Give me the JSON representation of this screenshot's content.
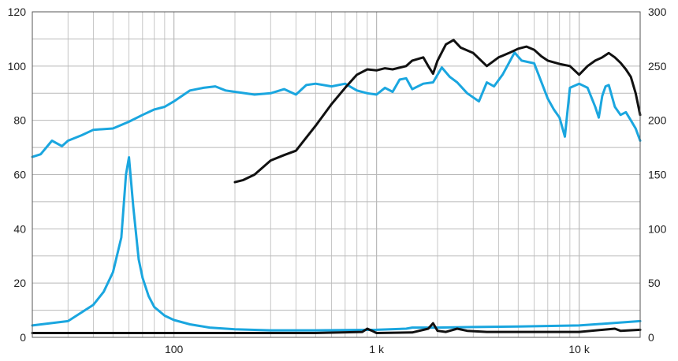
{
  "chart_data": {
    "type": "line",
    "title": "",
    "xlabel": "",
    "ylabel": "",
    "x_scale": "log",
    "xlim": [
      20,
      20000
    ],
    "ylim_left": [
      0,
      120
    ],
    "ylim_right": [
      0,
      300
    ],
    "grid": true,
    "legend": "none",
    "x_tick_labels": [
      {
        "value": 100,
        "label": "100"
      },
      {
        "value": 1000,
        "label": "1 k"
      },
      {
        "value": 10000,
        "label": "10 k"
      }
    ],
    "y_ticks_left": [
      0,
      20,
      40,
      60,
      80,
      100,
      120
    ],
    "y_ticks_right": [
      0,
      50,
      100,
      150,
      200,
      250,
      300
    ],
    "colors": {
      "blue": "#1aa6df",
      "black": "#111111",
      "grid": "#b9b9b9",
      "axis": "#555555"
    },
    "series": [
      {
        "color": "#1aa6df",
        "axis": "left",
        "x": [
          20,
          22,
          25,
          28,
          30,
          35,
          40,
          50,
          60,
          70,
          80,
          90,
          100,
          120,
          140,
          160,
          180,
          200,
          250,
          300,
          350,
          400,
          450,
          500,
          600,
          700,
          800,
          900,
          1000,
          1100,
          1200,
          1300,
          1400,
          1500,
          1700,
          1900,
          2100,
          2300,
          2500,
          2800,
          3200,
          3500,
          3800,
          4200,
          4800,
          5200,
          6000,
          7000,
          7500,
          8000,
          8500,
          9000,
          10000,
          11000,
          12000,
          12500,
          13000,
          13500,
          14000,
          15000,
          16000,
          17000,
          18000,
          19000,
          20000
        ],
        "values": [
          66.5,
          67.5,
          72.5,
          70.5,
          72.5,
          74.5,
          76.5,
          77,
          79.5,
          82,
          84,
          85,
          87,
          91,
          92,
          92.5,
          91,
          90.5,
          89.5,
          90,
          91.5,
          89.5,
          93,
          93.5,
          92.5,
          93.5,
          91,
          90,
          89.5,
          92,
          90.5,
          95,
          95.5,
          91.5,
          93.5,
          94,
          99.5,
          96,
          94,
          90,
          87,
          94,
          92.5,
          97,
          105,
          102,
          101,
          88,
          84,
          81,
          74,
          92,
          93.5,
          92,
          85,
          81,
          89,
          92.5,
          93,
          85,
          82,
          83,
          80,
          77,
          72.5
        ]
      },
      {
        "color": "#111111",
        "axis": "right",
        "x": [
          200,
          220,
          250,
          300,
          350,
          400,
          500,
          600,
          700,
          800,
          900,
          1000,
          1100,
          1200,
          1400,
          1500,
          1700,
          1800,
          1900,
          2000,
          2200,
          2400,
          2600,
          3000,
          3500,
          4000,
          4500,
          5000,
          5500,
          6000,
          6500,
          7000,
          8000,
          9000,
          10000,
          11000,
          12000,
          13000,
          14000,
          15000,
          16000,
          17000,
          18000,
          19000,
          20000
        ],
        "values": [
          143,
          145,
          150,
          163,
          168,
          172,
          195,
          215,
          230,
          242,
          247,
          246,
          248,
          247,
          250,
          255,
          258,
          250,
          243,
          255,
          270,
          274,
          267,
          262,
          250,
          258,
          262,
          266,
          268,
          265,
          259,
          255,
          252,
          250,
          242,
          250,
          255,
          258,
          262,
          258,
          253,
          247,
          240,
          225,
          205
        ]
      },
      {
        "color": "#1aa6df",
        "axis": "right",
        "x": [
          20,
          30,
          40,
          45,
          50,
          55,
          58,
          60,
          63,
          67,
          70,
          75,
          80,
          90,
          100,
          120,
          150,
          200,
          300,
          500,
          1000,
          1400,
          1500,
          2000,
          3000,
          5000,
          10000,
          20000
        ],
        "values": [
          11,
          15,
          30,
          42,
          60,
          92,
          150,
          166,
          120,
          72,
          55,
          38,
          28,
          20,
          16,
          12,
          9,
          7.5,
          6.5,
          6.5,
          7,
          8,
          9,
          9,
          9.5,
          10,
          11,
          15
        ]
      },
      {
        "color": "#111111",
        "axis": "right",
        "x": [
          20,
          100,
          500,
          850,
          900,
          950,
          1000,
          1500,
          1800,
          1900,
          2000,
          2200,
          2500,
          2800,
          3500,
          5000,
          10000,
          15000,
          16000,
          20000
        ],
        "values": [
          4,
          4,
          4,
          5,
          8,
          6,
          4,
          4.5,
          8,
          13,
          6,
          5,
          8,
          6,
          5,
          5,
          5,
          8,
          6,
          7
        ]
      }
    ]
  }
}
